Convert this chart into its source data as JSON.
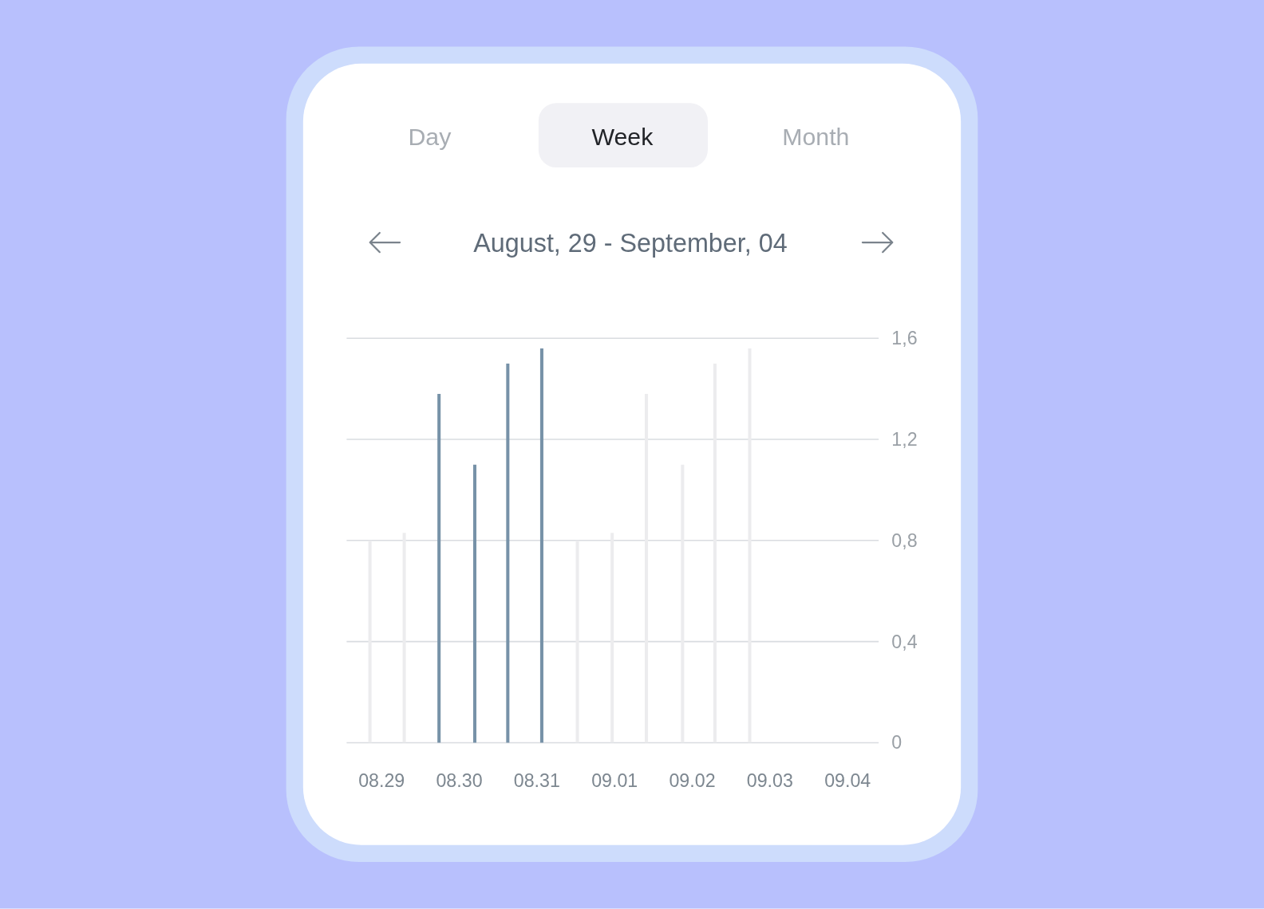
{
  "chart_data": {
    "type": "bar",
    "title": "August, 29 - September, 04",
    "annotations": [
      "Day",
      "Week",
      "Month"
    ],
    "x": [
      "--08-28T20:24",
      "--08-29T07:00",
      "--08-29T17:45",
      "--08-30T04:48",
      "--08-30T15:00",
      "--08-31T01:30",
      "--08-31T12:30",
      "--08-31T23:15",
      "--09-01T09:50",
      "--09-01T21:00",
      "--09-02T07:00",
      "--09-02T17:45"
    ],
    "values": [
      0.8,
      0.83,
      1.38,
      1.1,
      1.5,
      1.56,
      0.8,
      0.83,
      1.38,
      1.1,
      1.5,
      1.56
    ],
    "colors": [
      "#ececee",
      "#ececee",
      "#7792a8",
      "#7792a8",
      "#7792a8",
      "#7792a8",
      "#ececee",
      "#ececee",
      "#ececee",
      "#ececee",
      "#ececee",
      "#ececee"
    ],
    "xlim": [
      "--08-28T13:12",
      "--09-04T09:36"
    ],
    "xticks": [
      {
        "value": "--08-29",
        "label": "08.29"
      },
      {
        "value": "--08-30",
        "label": "08.30"
      },
      {
        "value": "--08-31",
        "label": "08.31"
      },
      {
        "value": "--09-01",
        "label": "09.01"
      },
      {
        "value": "--09-02",
        "label": "09.02"
      },
      {
        "value": "--09-03",
        "label": "09.03"
      },
      {
        "value": "--09-04",
        "label": "09.04"
      }
    ],
    "ylim": [
      0,
      1.6
    ],
    "yticks": [
      0,
      {
        "value": 0.4,
        "label": "0,4"
      },
      {
        "value": 0.8,
        "label": "0,8"
      },
      {
        "value": 1.2,
        "label": "1,2"
      },
      {
        "value": 1.6,
        "label": "1,6"
      }
    ],
    "grid": "y"
  }
}
